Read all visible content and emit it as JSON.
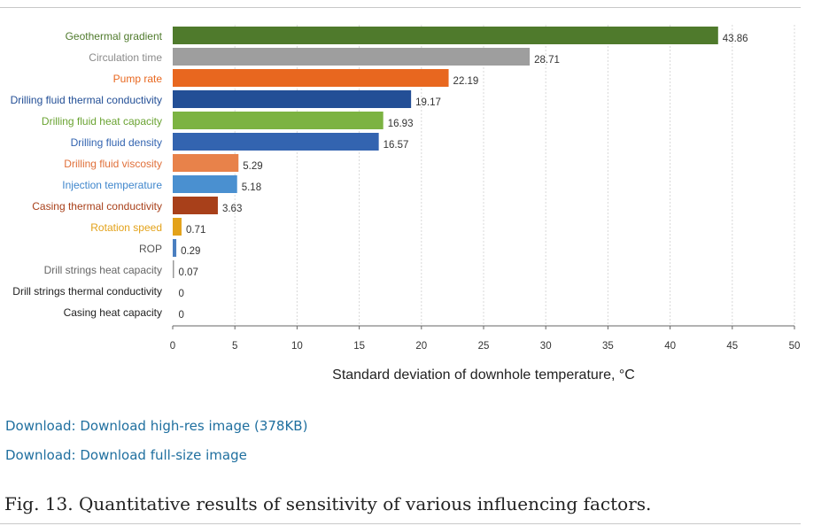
{
  "chart_data": {
    "type": "bar",
    "orientation": "horizontal",
    "categories": [
      "Geothermal gradient",
      "Circulation time",
      "Pump rate",
      "Drilling fluid thermal conductivity",
      "Drilling fluid heat capacity",
      "Drilling fluid density",
      "Drilling fluid viscosity",
      "Injection temperature",
      "Casing thermal conductivity",
      "Rotation speed",
      "ROP",
      "Drill strings heat capacity",
      "Drill strings thermal conductivity",
      "Casing heat capacity"
    ],
    "values": [
      43.86,
      28.71,
      22.19,
      19.17,
      16.93,
      16.57,
      5.29,
      5.18,
      3.63,
      0.71,
      0.29,
      0.07,
      0,
      0
    ],
    "value_labels": [
      "43.86",
      "28.71",
      "22.19",
      "19.17",
      "16.93",
      "16.57",
      "5.29",
      "5.18",
      "3.63",
      "0.71",
      "0.29",
      "0.07",
      "0",
      "0"
    ],
    "bar_colors": [
      "#4f7a2c",
      "#9e9e9e",
      "#e8671f",
      "#234f96",
      "#7cb342",
      "#3364b0",
      "#e8824a",
      "#4a90d0",
      "#a8401a",
      "#e3a21a",
      "#4a7fc0",
      "#9a9a9a",
      "#444444",
      "#444444"
    ],
    "label_colors": [
      "#4f7a2c",
      "#8a8a8a",
      "#e8671f",
      "#234f96",
      "#6aa332",
      "#3364b0",
      "#e0703a",
      "#3f86cc",
      "#a8401a",
      "#e3a21a",
      "#555555",
      "#666666",
      "#222222",
      "#222222"
    ],
    "xlabel": "Standard deviation of downhole temperature, °C",
    "ylabel": "",
    "xlim": [
      0,
      50
    ],
    "xticks": [
      0,
      5,
      10,
      15,
      20,
      25,
      30,
      35,
      40,
      45,
      50
    ],
    "grid": "vertical dashed"
  },
  "links": {
    "high_res": "Download: Download high-res image (378KB)",
    "full_size": "Download: Download full-size image"
  },
  "caption": "Fig. 13. Quantitative results of sensitivity of various influencing factors."
}
